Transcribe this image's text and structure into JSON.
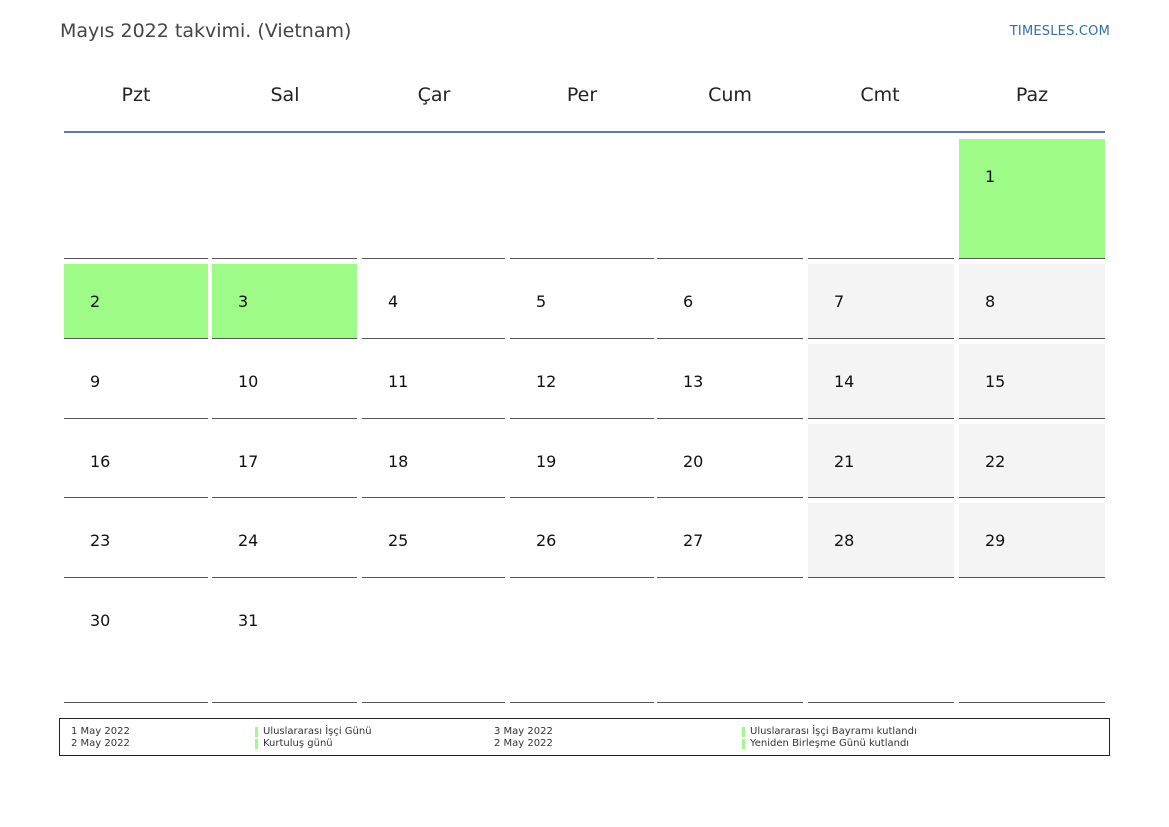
{
  "title": "Mayıs 2022 takvimi. (Vietnam)",
  "brand": "TIMESLES.COM",
  "weekdays": [
    "Pzt",
    "Sal",
    "Çar",
    "Per",
    "Cum",
    "Cmt",
    "Paz"
  ],
  "colors": {
    "holiday": "#9efb87",
    "weekend": "#f4f4f4",
    "header_rule": "#5b78a8",
    "brand": "#2f6fb0"
  },
  "weeks": [
    [
      null,
      null,
      null,
      null,
      null,
      null,
      {
        "day": "1",
        "holiday": true
      }
    ],
    [
      {
        "day": "2",
        "holiday": true
      },
      {
        "day": "3",
        "holiday": true
      },
      {
        "day": "4"
      },
      {
        "day": "5"
      },
      {
        "day": "6"
      },
      {
        "day": "7"
      },
      {
        "day": "8"
      }
    ],
    [
      {
        "day": "9"
      },
      {
        "day": "10"
      },
      {
        "day": "11"
      },
      {
        "day": "12"
      },
      {
        "day": "13"
      },
      {
        "day": "14"
      },
      {
        "day": "15"
      }
    ],
    [
      {
        "day": "16"
      },
      {
        "day": "17"
      },
      {
        "day": "18"
      },
      {
        "day": "19"
      },
      {
        "day": "20"
      },
      {
        "day": "21"
      },
      {
        "day": "22"
      }
    ],
    [
      {
        "day": "23"
      },
      {
        "day": "24"
      },
      {
        "day": "25"
      },
      {
        "day": "26"
      },
      {
        "day": "27"
      },
      {
        "day": "28"
      },
      {
        "day": "29"
      }
    ],
    [
      {
        "day": "30"
      },
      {
        "day": "31"
      },
      null,
      null,
      null,
      null,
      null
    ]
  ],
  "legend": [
    {
      "date": "1 May 2022",
      "name": "Uluslararası İşçi Günü"
    },
    {
      "date": "2 May 2022",
      "name": "Kurtuluş günü"
    },
    {
      "date": "3 May 2022",
      "name": "Uluslararası İşçi Bayramı kutlandı"
    },
    {
      "date": "2 May 2022",
      "name": "Yeniden Birleşme Günü kutlandı"
    }
  ]
}
